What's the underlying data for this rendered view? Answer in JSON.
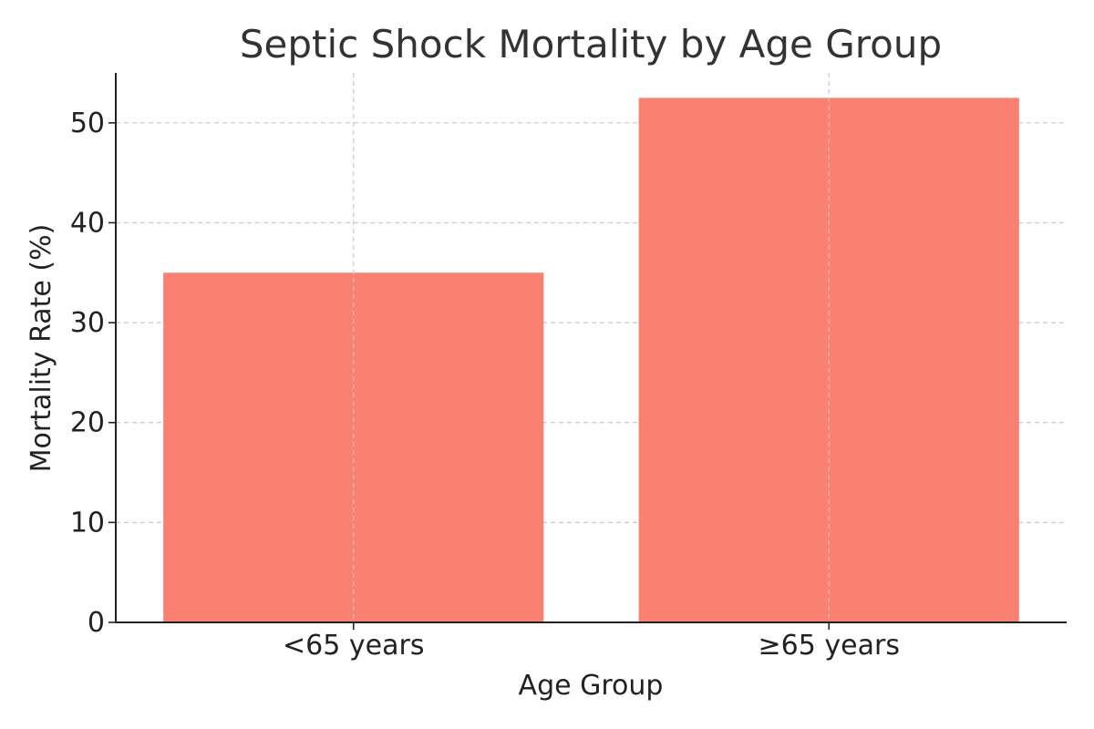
{
  "chart_data": {
    "type": "bar",
    "title": "Septic Shock Mortality by Age Group",
    "xlabel": "Age Group",
    "ylabel": "Mortality Rate (%)",
    "categories": [
      "<65 years",
      "≥65 years"
    ],
    "values": [
      35,
      52.5
    ],
    "ylim": [
      0,
      55
    ],
    "yticks": [
      0,
      10,
      20,
      30,
      40,
      50
    ],
    "grid": true,
    "legend": "none",
    "bar_color": "#fa8072"
  }
}
